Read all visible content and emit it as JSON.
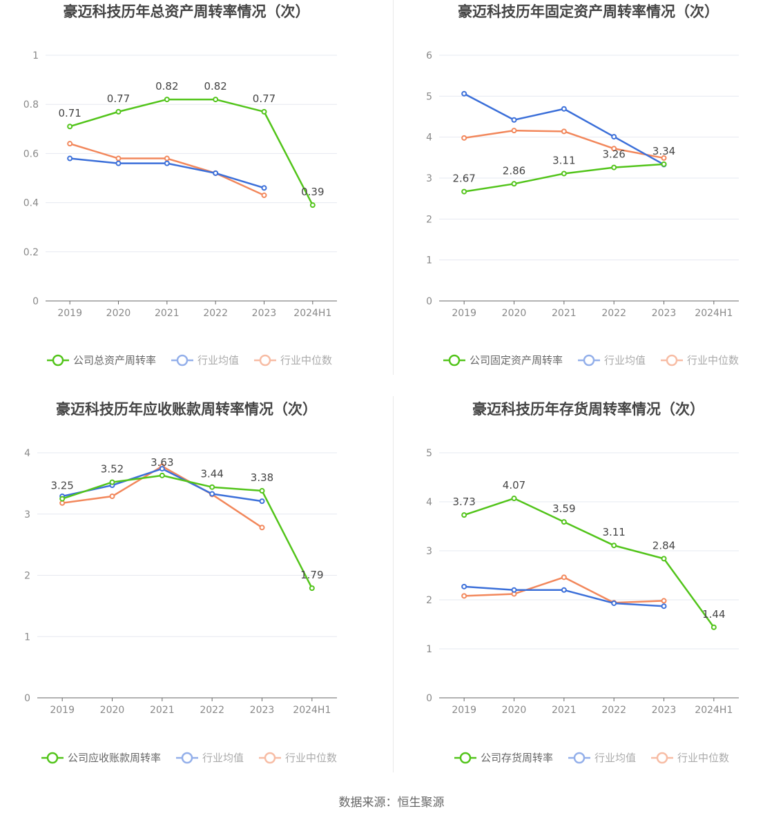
{
  "colors": {
    "company": "#52c41a",
    "avg": "#3b6fd9",
    "median": "#f2875b",
    "grid": "#e6e8f0",
    "axis": "#666666"
  },
  "legend_labels": {
    "avg": "行业均值",
    "median": "行业中位数"
  },
  "source_text": "数据来源：恒生聚源",
  "chart_data": [
    {
      "type": "line",
      "title": "豪迈科技历年总资产周转率情况（次）",
      "categories": [
        "2019",
        "2020",
        "2021",
        "2022",
        "2023",
        "2024H1"
      ],
      "ylim": [
        0,
        1
      ],
      "yticks": [
        0,
        0.2,
        0.4,
        0.6,
        0.8,
        1
      ],
      "ytick_labels": [
        "0",
        "0.2",
        "0.4",
        "0.6",
        "0.8",
        "1"
      ],
      "legend_position": "bottom",
      "series": [
        {
          "name": "公司总资产周转率",
          "key": "company",
          "values": [
            0.71,
            0.77,
            0.82,
            0.82,
            0.77,
            0.39
          ],
          "labels": [
            "0.71",
            "0.77",
            "0.82",
            "0.82",
            "0.77",
            "0.39"
          ]
        },
        {
          "name": "行业均值",
          "key": "avg",
          "values": [
            0.58,
            0.56,
            0.56,
            0.52,
            0.46,
            null
          ]
        },
        {
          "name": "行业中位数",
          "key": "median",
          "values": [
            0.64,
            0.58,
            0.58,
            0.52,
            0.43,
            null
          ]
        }
      ]
    },
    {
      "type": "line",
      "title": "豪迈科技历年固定资产周转率情况（次）",
      "categories": [
        "2019",
        "2020",
        "2021",
        "2022",
        "2023",
        "2024H1"
      ],
      "ylim": [
        0,
        6
      ],
      "yticks": [
        0,
        1,
        2,
        3,
        4,
        5,
        6
      ],
      "ytick_labels": [
        "0",
        "1",
        "2",
        "3",
        "4",
        "5",
        "6"
      ],
      "legend_position": "bottom",
      "series": [
        {
          "name": "公司固定资产周转率",
          "key": "company",
          "values": [
            2.67,
            2.86,
            3.11,
            3.26,
            3.34,
            null
          ],
          "labels": [
            "2.67",
            "2.86",
            "3.11",
            "3.26",
            "3.34",
            ""
          ]
        },
        {
          "name": "行业均值",
          "key": "avg",
          "values": [
            5.06,
            4.42,
            4.69,
            4.01,
            3.33,
            null
          ]
        },
        {
          "name": "行业中位数",
          "key": "median",
          "values": [
            3.98,
            4.16,
            4.14,
            3.72,
            3.49,
            null
          ]
        }
      ]
    },
    {
      "type": "line",
      "title": "豪迈科技历年应收账款周转率情况（次）",
      "categories": [
        "2019",
        "2020",
        "2021",
        "2022",
        "2023",
        "2024H1"
      ],
      "ylim": [
        0,
        4
      ],
      "yticks": [
        0,
        1,
        2,
        3,
        4
      ],
      "ytick_labels": [
        "0",
        "1",
        "2",
        "3",
        "4"
      ],
      "legend_position": "bottom",
      "series": [
        {
          "name": "公司应收账款周转率",
          "key": "company",
          "values": [
            3.25,
            3.52,
            3.63,
            3.44,
            3.38,
            1.79
          ],
          "labels": [
            "3.25",
            "3.52",
            "3.63",
            "3.44",
            "3.38",
            "1.79"
          ]
        },
        {
          "name": "行业均值",
          "key": "avg",
          "values": [
            3.29,
            3.47,
            3.74,
            3.33,
            3.21,
            null
          ]
        },
        {
          "name": "行业中位数",
          "key": "median",
          "values": [
            3.18,
            3.29,
            3.78,
            3.32,
            2.78,
            null
          ]
        }
      ]
    },
    {
      "type": "line",
      "title": "豪迈科技历年存货周转率情况（次）",
      "categories": [
        "2019",
        "2020",
        "2021",
        "2022",
        "2023",
        "2024H1"
      ],
      "ylim": [
        0,
        5
      ],
      "yticks": [
        0,
        1,
        2,
        3,
        4,
        5
      ],
      "ytick_labels": [
        "0",
        "1",
        "2",
        "3",
        "4",
        "5"
      ],
      "legend_position": "bottom",
      "series": [
        {
          "name": "公司存货周转率",
          "key": "company",
          "values": [
            3.73,
            4.07,
            3.59,
            3.11,
            2.84,
            1.44
          ],
          "labels": [
            "3.73",
            "4.07",
            "3.59",
            "3.11",
            "2.84",
            "1.44"
          ]
        },
        {
          "name": "行业均值",
          "key": "avg",
          "values": [
            2.27,
            2.2,
            2.2,
            1.93,
            1.87,
            null
          ]
        },
        {
          "name": "行业中位数",
          "key": "median",
          "values": [
            2.08,
            2.12,
            2.46,
            1.94,
            1.98,
            null
          ]
        }
      ]
    }
  ]
}
